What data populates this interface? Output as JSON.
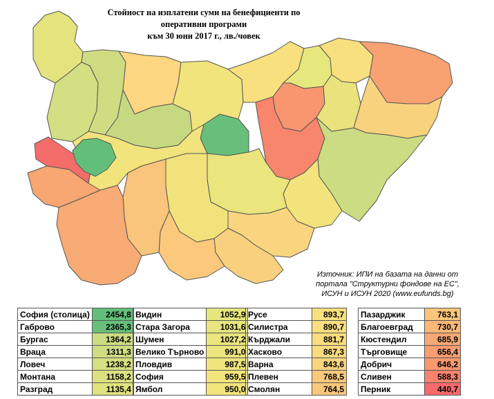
{
  "title_lines": [
    "Стойност на изплатени суми на бенефициенти по",
    "оперативни програми",
    "към 30 юни 2017 г., лв./човек"
  ],
  "source_lines": [
    "Източник: ИПИ на базата на данни от",
    "портала \"Структурни фондове на ЕС\",",
    "ИСУН и ИСУН 2020 (www.eufunds.bg)"
  ],
  "colors": {
    "high": "#63be7b",
    "mid": "#e6e57b",
    "low": "#f8696b",
    "border": "#555555"
  },
  "tables": [
    [
      {
        "name": "София (столица)",
        "value": "2454,8"
      },
      {
        "name": "Габрово",
        "value": "2365,3"
      },
      {
        "name": "Бургас",
        "value": "1364,2"
      },
      {
        "name": "Враца",
        "value": "1311,3"
      },
      {
        "name": "Ловеч",
        "value": "1238,2"
      },
      {
        "name": "Монтана",
        "value": "1158,2"
      },
      {
        "name": "Разград",
        "value": "1135,4"
      }
    ],
    [
      {
        "name": "Видин",
        "value": "1052,9"
      },
      {
        "name": "Стара Загора",
        "value": "1031,6"
      },
      {
        "name": "Шумен",
        "value": "1027,2"
      },
      {
        "name": "Велико Търново",
        "value": "991,0"
      },
      {
        "name": "Пловдив",
        "value": "987,5"
      },
      {
        "name": "София",
        "value": "959,5"
      },
      {
        "name": "Ямбол",
        "value": "950,0"
      }
    ],
    [
      {
        "name": "Русе",
        "value": "893,7"
      },
      {
        "name": "Силистра",
        "value": "890,7"
      },
      {
        "name": "Кърджали",
        "value": "881,7"
      },
      {
        "name": "Хасково",
        "value": "867,3"
      },
      {
        "name": "Варна",
        "value": "843,6"
      },
      {
        "name": "Плевен",
        "value": "768,5"
      },
      {
        "name": "Смолян",
        "value": "764,5"
      }
    ],
    [
      {
        "name": "Пазарджик",
        "value": "763,1"
      },
      {
        "name": "Благоевград",
        "value": "730,7"
      },
      {
        "name": "Кюстендил",
        "value": "685,9"
      },
      {
        "name": "Търговище",
        "value": "656,4"
      },
      {
        "name": "Добрич",
        "value": "646,2"
      },
      {
        "name": "Сливен",
        "value": "588,3"
      },
      {
        "name": "Перник",
        "value": "440,7"
      }
    ]
  ]
}
